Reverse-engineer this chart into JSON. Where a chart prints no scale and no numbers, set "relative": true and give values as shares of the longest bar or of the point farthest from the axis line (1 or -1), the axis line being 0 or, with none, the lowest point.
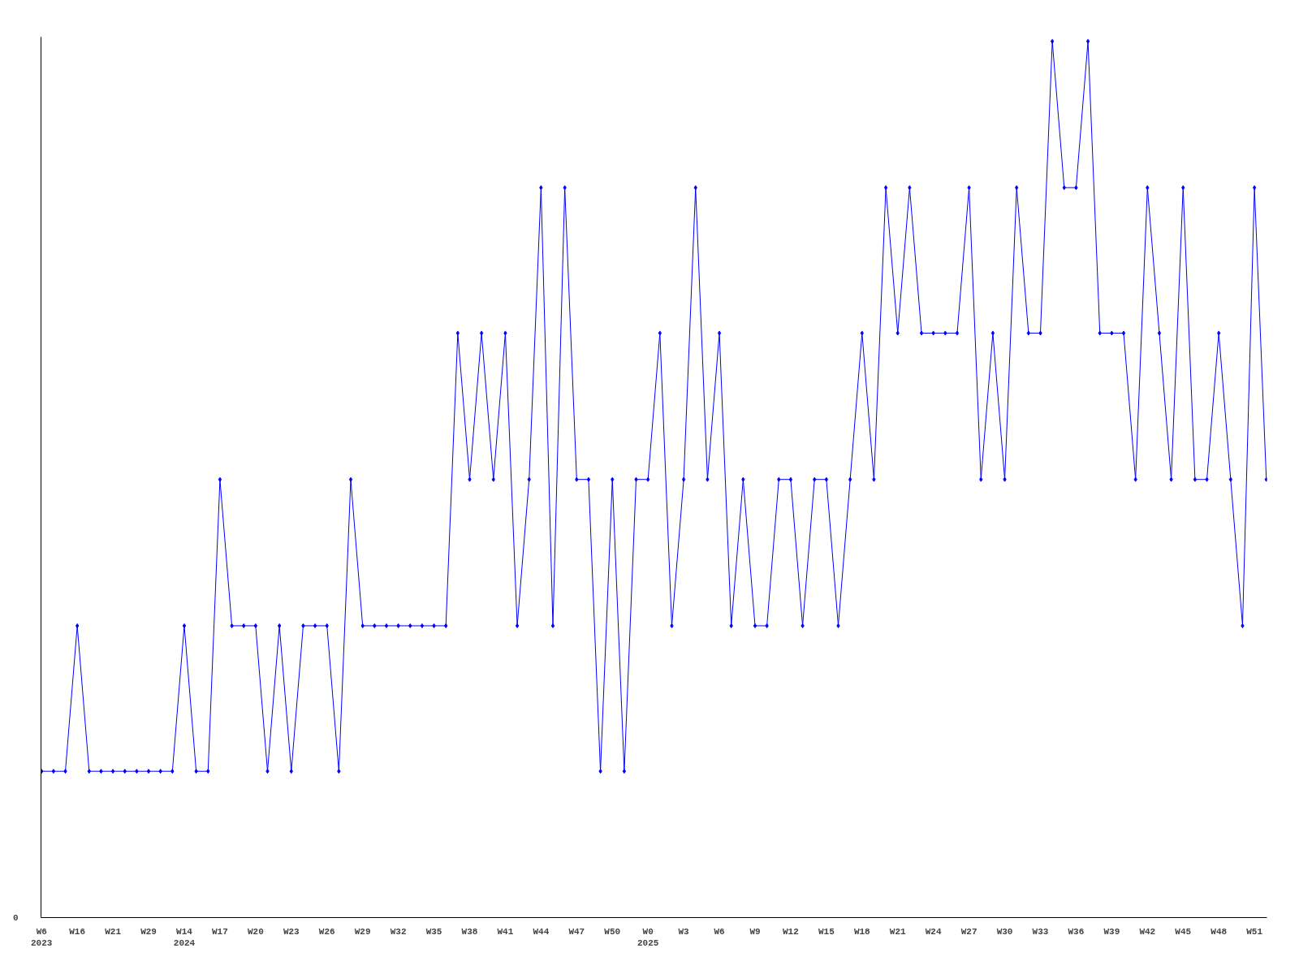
{
  "chart_data": {
    "type": "line",
    "relative": true,
    "marker": "diamond",
    "line_style": "solid",
    "grid": false,
    "legend": false,
    "categories": [
      "W6\n2023",
      null,
      null,
      "W16",
      null,
      null,
      "W21",
      null,
      null,
      "W29",
      null,
      null,
      "W14\n2024",
      null,
      null,
      "W17",
      null,
      null,
      "W20",
      null,
      null,
      "W23",
      null,
      null,
      "W26",
      null,
      null,
      "W29",
      null,
      null,
      "W32",
      null,
      null,
      "W35",
      null,
      null,
      "W38",
      null,
      null,
      "W41",
      null,
      null,
      "W44",
      null,
      null,
      "W47",
      null,
      null,
      "W50",
      null,
      null,
      "W0\n2025",
      null,
      null,
      "W3",
      null,
      null,
      "W6",
      null,
      null,
      "W9",
      null,
      null,
      "W12",
      null,
      null,
      "W15",
      null,
      null,
      "W18",
      null,
      null,
      "W21",
      null,
      null,
      "W24",
      null,
      null,
      "W27",
      null,
      null,
      "W30",
      null,
      null,
      "W33",
      null,
      null,
      "W36",
      null,
      null,
      "W39",
      null,
      null,
      "W42",
      null,
      null,
      "W45",
      null,
      null,
      "W48",
      null,
      null,
      "W51",
      null
    ],
    "series": [
      {
        "color": "#0000ff",
        "values": [
          0.167,
          0.167,
          0.167,
          0.333,
          0.167,
          0.167,
          0.167,
          0.167,
          0.167,
          0.167,
          0.167,
          0.167,
          0.333,
          0.167,
          0.167,
          0.5,
          0.333,
          0.333,
          0.333,
          0.167,
          0.333,
          0.167,
          0.333,
          0.333,
          0.333,
          0.167,
          0.5,
          0.333,
          0.333,
          0.333,
          0.333,
          0.333,
          0.333,
          0.333,
          0.333,
          0.667,
          0.5,
          0.667,
          0.5,
          0.667,
          0.333,
          0.5,
          0.833,
          0.333,
          0.833,
          0.5,
          0.5,
          0.167,
          0.5,
          0.167,
          0.5,
          0.5,
          0.667,
          0.333,
          0.5,
          0.833,
          0.5,
          0.667,
          0.333,
          0.5,
          0.333,
          0.333,
          0.5,
          0.5,
          0.333,
          0.5,
          0.5,
          0.333,
          0.5,
          0.667,
          0.5,
          0.833,
          0.667,
          0.833,
          0.667,
          0.667,
          0.667,
          0.667,
          0.833,
          0.5,
          0.667,
          0.5,
          0.833,
          0.667,
          0.667,
          1,
          0.833,
          0.833,
          1,
          0.667,
          0.667,
          0.667,
          0.5,
          0.833,
          0.667,
          0.5,
          0.833,
          0.5,
          0.5,
          0.667,
          0.5,
          0.333,
          0.833,
          0.5
        ]
      }
    ],
    "annotations": [
      "0"
    ]
  }
}
